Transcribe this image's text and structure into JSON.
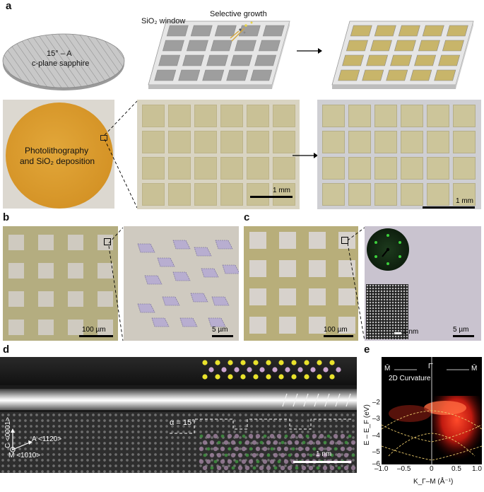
{
  "panels": {
    "a": {
      "letter": "a",
      "substrate_line1": "15° – A",
      "substrate_line2": "c-plane sapphire",
      "window_label": "SiO₂ window",
      "growth_label": "Selective growth",
      "wafer_line1": "Photolithography",
      "wafer_line2": "and SiO₂ deposition",
      "scale1": "1 mm",
      "scale2": "1 mm"
    },
    "b": {
      "letter": "b",
      "scale1": "100 µm",
      "scale2": "5 µm"
    },
    "c": {
      "letter": "c",
      "scale1": "100 µm",
      "scale2": "5 µm",
      "scale_inset": "1 nm"
    },
    "d": {
      "letter": "d",
      "alpha_label": "α = 15°",
      "axis_c": "C <0001>",
      "axis_a": "A <1120>",
      "axis_m": "M <1010>",
      "scale": "1 nm"
    },
    "e": {
      "letter": "e",
      "ylabel": "E – E_F (eV)",
      "xlabel": "K_Γ–M (Å⁻¹)",
      "k_left": "M̄",
      "k_mid": "Γ̄",
      "k_right": "M̄",
      "curv_label": "2D Curvature",
      "yticks": [
        "–2",
        "–3",
        "–4",
        "–5",
        "–6"
      ],
      "xticks": [
        "–1.0",
        "–0.5",
        "0",
        "0.5",
        "1.0"
      ]
    }
  },
  "colors": {
    "wafer": "#d99a28",
    "film_yellow": "#c8b56a",
    "optical_bg": "#b9b185",
    "optical_pad": "#d7d2cc",
    "flake": "#b8aed0",
    "arpes_red": "#e0281a"
  }
}
